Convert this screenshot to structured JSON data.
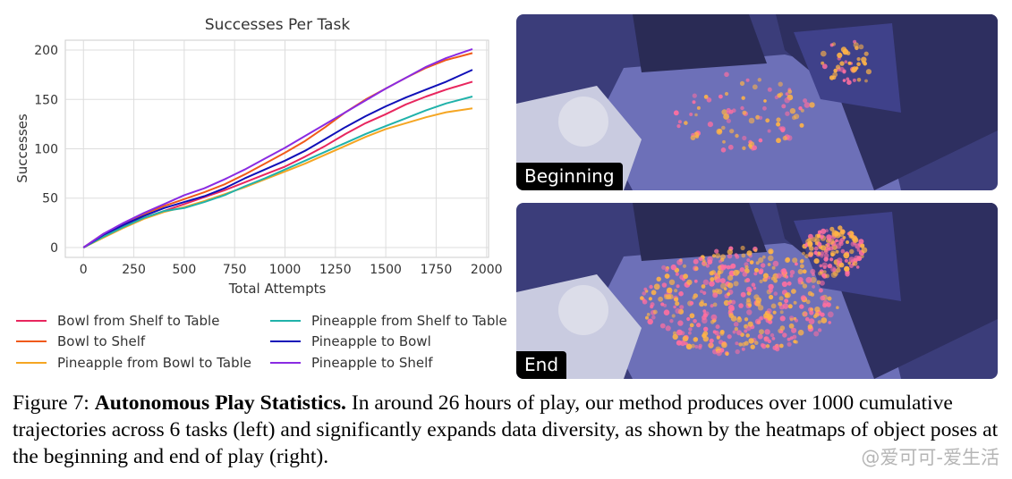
{
  "chart_data": {
    "type": "line",
    "title": "Successes Per Task",
    "xlabel": "Total Attempts",
    "ylabel": "Successes",
    "xlim": [
      -90,
      2010
    ],
    "ylim": [
      -10,
      210
    ],
    "xticks": [
      "0",
      "250",
      "500",
      "750",
      "1000",
      "1250",
      "1500",
      "1750",
      "2000"
    ],
    "yticks": [
      "0",
      "50",
      "100",
      "150",
      "200"
    ],
    "grid": true,
    "legend_position": "bottom",
    "series": [
      {
        "name": "Bowl from Shelf to Table",
        "color": "#e8265e",
        "x": [
          0,
          100,
          200,
          300,
          400,
          500,
          600,
          700,
          800,
          900,
          1000,
          1100,
          1200,
          1300,
          1400,
          1500,
          1600,
          1700,
          1800,
          1930
        ],
        "y": [
          0,
          12,
          22,
          30,
          37,
          44,
          51,
          58,
          66,
          74,
          82,
          92,
          103,
          115,
          126,
          135,
          145,
          153,
          160,
          168
        ]
      },
      {
        "name": "Bowl to Shelf",
        "color": "#f05a1a",
        "x": [
          0,
          100,
          200,
          300,
          400,
          500,
          600,
          700,
          800,
          900,
          1000,
          1100,
          1200,
          1300,
          1400,
          1500,
          1600,
          1700,
          1800,
          1930
        ],
        "y": [
          0,
          14,
          24,
          34,
          42,
          49,
          56,
          64,
          74,
          85,
          96,
          108,
          122,
          137,
          150,
          161,
          172,
          182,
          190,
          197
        ]
      },
      {
        "name": "Pineapple from Bowl to Table",
        "color": "#f5a623",
        "x": [
          0,
          100,
          200,
          300,
          400,
          500,
          600,
          700,
          800,
          900,
          1000,
          1100,
          1200,
          1300,
          1400,
          1500,
          1600,
          1700,
          1800,
          1930
        ],
        "y": [
          0,
          10,
          20,
          29,
          36,
          41,
          47,
          54,
          61,
          69,
          77,
          85,
          94,
          103,
          112,
          120,
          126,
          132,
          137,
          141
        ]
      },
      {
        "name": "Pineapple from Shelf to Table",
        "color": "#20b2aa",
        "x": [
          0,
          100,
          200,
          300,
          400,
          500,
          600,
          700,
          800,
          900,
          1000,
          1100,
          1200,
          1300,
          1400,
          1500,
          1600,
          1700,
          1800,
          1930
        ],
        "y": [
          0,
          11,
          21,
          30,
          37,
          40,
          46,
          53,
          62,
          70,
          79,
          88,
          97,
          106,
          115,
          123,
          131,
          139,
          146,
          153
        ]
      },
      {
        "name": "Pineapple to Bowl",
        "color": "#1010b8",
        "x": [
          0,
          100,
          200,
          300,
          400,
          500,
          600,
          700,
          800,
          900,
          1000,
          1100,
          1200,
          1300,
          1400,
          1500,
          1600,
          1700,
          1800,
          1930
        ],
        "y": [
          0,
          13,
          23,
          32,
          40,
          46,
          52,
          60,
          70,
          79,
          88,
          98,
          110,
          122,
          133,
          143,
          152,
          160,
          168,
          180
        ]
      },
      {
        "name": "Pineapple to Shelf",
        "color": "#8a2be2",
        "x": [
          0,
          100,
          200,
          300,
          400,
          500,
          600,
          700,
          800,
          900,
          1000,
          1100,
          1200,
          1300,
          1400,
          1500,
          1600,
          1700,
          1800,
          1930
        ],
        "y": [
          0,
          14,
          25,
          35,
          44,
          53,
          60,
          69,
          79,
          90,
          101,
          113,
          125,
          137,
          149,
          161,
          172,
          183,
          192,
          201
        ]
      }
    ]
  },
  "panels": {
    "top_label": "Beginning",
    "bottom_label": "End"
  },
  "caption": {
    "prefix": "Figure 7: ",
    "bold": "Autonomous Play Statistics.",
    "text": " In around 26 hours of play, our method produces over 1000 cumulative trajectories across 6 tasks (left) and significantly expands data diversity, as shown by the heatmaps of object poses at the beginning and end of play (right)."
  },
  "watermark": "@爱可可-爱生活"
}
